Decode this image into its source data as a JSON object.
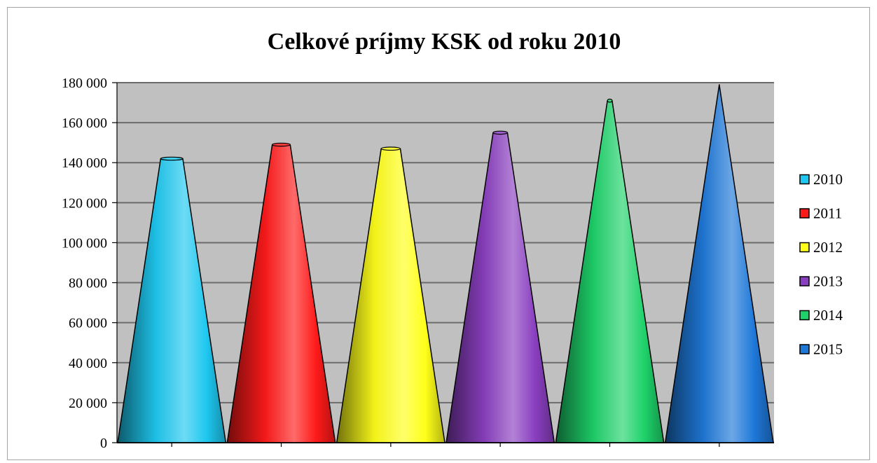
{
  "chart_data": {
    "type": "bar",
    "bar_shape": "cone",
    "title": "Celkové príjmy KSK od roku 2010",
    "xlabel": "",
    "ylabel": "",
    "ylim": [
      0,
      180000
    ],
    "ytick_step": 20000,
    "ytick_labels": [
      "0",
      "20 000",
      "40 000",
      "60 000",
      "80 000",
      "100 000",
      "120 000",
      "140 000",
      "160 000",
      "180 000"
    ],
    "grid": true,
    "plot_background": "#c0c0c0",
    "legend_position": "right",
    "series": [
      {
        "name": "2010",
        "value": 142000,
        "color": "#1ec8f0"
      },
      {
        "name": "2011",
        "value": 149000,
        "color": "#ff1a1a"
      },
      {
        "name": "2012",
        "value": 147000,
        "color": "#ffff1a"
      },
      {
        "name": "2013",
        "value": 155000,
        "color": "#8a3fc0"
      },
      {
        "name": "2014",
        "value": 171000,
        "color": "#1ed26a"
      },
      {
        "name": "2015",
        "value": 179000,
        "color": "#1e78d8"
      }
    ]
  }
}
